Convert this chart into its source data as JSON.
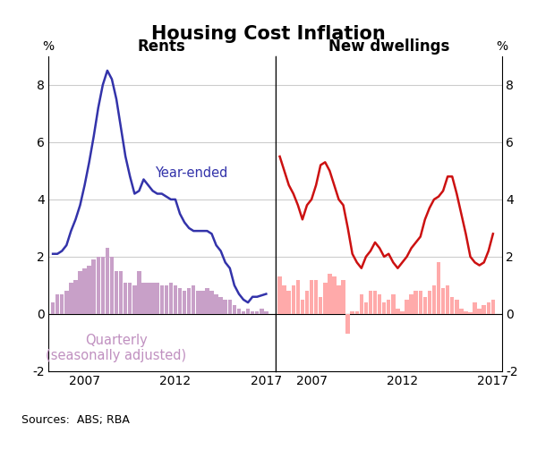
{
  "title": "Housing Cost Inflation",
  "source_text": "Sources:  ABS; RBA",
  "panel_left_title": "Rents",
  "panel_right_title": "New dwellings",
  "ylim": [
    -2,
    9
  ],
  "yticks": [
    -2,
    0,
    2,
    4,
    6,
    8
  ],
  "ylabel_left": "%",
  "ylabel_right": "%",
  "line_label": "Year-ended",
  "bar_label": "Quarterly\n(seasonally adjusted)",
  "rents_quarters": [
    2005.25,
    2005.5,
    2005.75,
    2006.0,
    2006.25,
    2006.5,
    2006.75,
    2007.0,
    2007.25,
    2007.5,
    2007.75,
    2008.0,
    2008.25,
    2008.5,
    2008.75,
    2009.0,
    2009.25,
    2009.5,
    2009.75,
    2010.0,
    2010.25,
    2010.5,
    2010.75,
    2011.0,
    2011.25,
    2011.5,
    2011.75,
    2012.0,
    2012.25,
    2012.5,
    2012.75,
    2013.0,
    2013.25,
    2013.5,
    2013.75,
    2014.0,
    2014.25,
    2014.5,
    2014.75,
    2015.0,
    2015.25,
    2015.5,
    2015.75,
    2016.0,
    2016.25,
    2016.5,
    2016.75,
    2017.0
  ],
  "rents_bar": [
    0.4,
    0.7,
    0.7,
    0.8,
    1.1,
    1.2,
    1.5,
    1.6,
    1.7,
    1.9,
    2.0,
    2.0,
    2.3,
    2.0,
    1.5,
    1.5,
    1.1,
    1.1,
    1.0,
    1.5,
    1.1,
    1.1,
    1.1,
    1.1,
    1.0,
    1.0,
    1.1,
    1.0,
    0.9,
    0.8,
    0.9,
    1.0,
    0.8,
    0.8,
    0.9,
    0.8,
    0.7,
    0.6,
    0.5,
    0.5,
    0.3,
    0.2,
    0.1,
    0.2,
    0.1,
    0.1,
    0.2,
    0.1
  ],
  "rents_line": [
    2.1,
    2.1,
    2.2,
    2.4,
    2.9,
    3.3,
    3.8,
    4.5,
    5.3,
    6.2,
    7.2,
    8.0,
    8.5,
    8.2,
    7.5,
    6.5,
    5.5,
    4.8,
    4.2,
    4.3,
    4.7,
    4.5,
    4.3,
    4.2,
    4.2,
    4.1,
    4.0,
    4.0,
    3.5,
    3.2,
    3.0,
    2.9,
    2.9,
    2.9,
    2.9,
    2.8,
    2.4,
    2.2,
    1.8,
    1.6,
    1.0,
    0.7,
    0.5,
    0.4,
    0.6,
    0.6,
    0.65,
    0.7
  ],
  "dwellings_quarters": [
    2005.25,
    2005.5,
    2005.75,
    2006.0,
    2006.25,
    2006.5,
    2006.75,
    2007.0,
    2007.25,
    2007.5,
    2007.75,
    2008.0,
    2008.25,
    2008.5,
    2008.75,
    2009.0,
    2009.25,
    2009.5,
    2009.75,
    2010.0,
    2010.25,
    2010.5,
    2010.75,
    2011.0,
    2011.25,
    2011.5,
    2011.75,
    2012.0,
    2012.25,
    2012.5,
    2012.75,
    2013.0,
    2013.25,
    2013.5,
    2013.75,
    2014.0,
    2014.25,
    2014.5,
    2014.75,
    2015.0,
    2015.25,
    2015.5,
    2015.75,
    2016.0,
    2016.25,
    2016.5,
    2016.75,
    2017.0
  ],
  "dwellings_bar": [
    1.3,
    1.0,
    0.8,
    1.0,
    1.2,
    0.5,
    0.8,
    1.2,
    1.2,
    0.6,
    1.1,
    1.4,
    1.3,
    1.0,
    1.2,
    -0.7,
    0.1,
    0.1,
    0.7,
    0.4,
    0.8,
    0.8,
    0.7,
    0.4,
    0.5,
    0.7,
    0.2,
    0.1,
    0.5,
    0.7,
    0.8,
    0.8,
    0.6,
    0.8,
    1.0,
    1.8,
    0.9,
    1.0,
    0.6,
    0.5,
    0.2,
    0.1,
    0.05,
    0.4,
    0.2,
    0.3,
    0.4,
    0.5
  ],
  "dwellings_line": [
    5.5,
    5.0,
    4.5,
    4.2,
    3.8,
    3.3,
    3.8,
    4.0,
    4.5,
    5.2,
    5.3,
    5.0,
    4.5,
    4.0,
    3.8,
    3.0,
    2.1,
    1.8,
    1.6,
    2.0,
    2.2,
    2.5,
    2.3,
    2.0,
    2.1,
    1.8,
    1.6,
    1.8,
    2.0,
    2.3,
    2.5,
    2.7,
    3.3,
    3.7,
    4.0,
    4.1,
    4.3,
    4.8,
    4.8,
    4.2,
    3.5,
    2.8,
    2.0,
    1.8,
    1.7,
    1.8,
    2.2,
    2.8
  ],
  "line_color_left": "#3333aa",
  "bar_color_left": "#c8a0c8",
  "line_color_right": "#cc1111",
  "bar_color_right": "#ffaaaa",
  "grid_color": "#cccccc",
  "background_color": "#ffffff",
  "bar_width": 0.22,
  "xlim": [
    2005.0,
    2017.5
  ],
  "xticks": [
    2007,
    2012,
    2017
  ],
  "title_fontsize": 15,
  "panel_title_fontsize": 12,
  "label_fontsize": 10.5,
  "tick_fontsize": 10,
  "source_fontsize": 9
}
